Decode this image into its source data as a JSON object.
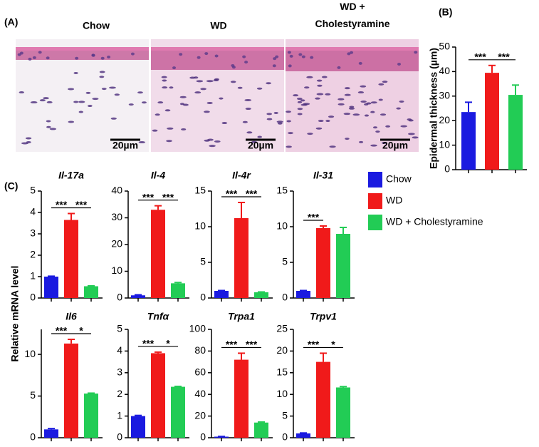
{
  "figure": {
    "panel_labels": [
      "(A)",
      "(B)",
      "(C)"
    ],
    "histology": {
      "labels": [
        "Chow",
        "WD",
        "WD + Cholestyramine"
      ],
      "scale_bar": "20µm"
    },
    "shared_ylabel": "Relative mRNA level",
    "legend": [
      {
        "name": "Chow",
        "color": "#1a1ae0"
      },
      {
        "name": "WD",
        "color": "#f01a1a"
      },
      {
        "name": "WD + Cholestyramine",
        "color": "#22cc55"
      }
    ]
  },
  "chart_data": [
    {
      "type": "bar",
      "ylabel": "Epidermal thickness (µm)",
      "categories": [
        null,
        null,
        null
      ],
      "values": [
        23.5,
        39.5,
        30.5
      ],
      "errors": [
        4,
        3,
        4
      ],
      "colors": [
        "#1a1ae0",
        "#f01a1a",
        "#22cc55"
      ],
      "ylim": [
        0,
        50
      ],
      "yticks": [
        0,
        10,
        20,
        30,
        40,
        50
      ],
      "comparisons": [
        "***",
        "***"
      ]
    },
    {
      "type": "bar",
      "title": "Il-17a",
      "categories": [
        null,
        null,
        null
      ],
      "values": [
        1.0,
        3.65,
        0.55
      ],
      "errors": [
        0.02,
        0.3,
        0.02
      ],
      "colors": [
        "#1a1ae0",
        "#f01a1a",
        "#22cc55"
      ],
      "ylim": [
        0,
        5
      ],
      "yticks": [
        0,
        1,
        2,
        3,
        4,
        5
      ],
      "comparisons": [
        "***",
        "***"
      ]
    },
    {
      "type": "bar",
      "title": "Il-4",
      "categories": [
        null,
        null,
        null
      ],
      "values": [
        1,
        33,
        5.5
      ],
      "errors": [
        0.2,
        1.5,
        0.3
      ],
      "colors": [
        "#1a1ae0",
        "#f01a1a",
        "#22cc55"
      ],
      "ylim": [
        0,
        40
      ],
      "yticks": [
        0,
        10,
        20,
        30,
        40
      ],
      "comparisons": [
        "***",
        "***"
      ]
    },
    {
      "type": "bar",
      "title": "Il-4r",
      "categories": [
        null,
        null,
        null
      ],
      "values": [
        1.0,
        11.2,
        0.8
      ],
      "errors": [
        0.05,
        2.2,
        0.05
      ],
      "colors": [
        "#1a1ae0",
        "#f01a1a",
        "#22cc55"
      ],
      "ylim": [
        0,
        15
      ],
      "yticks": [
        0,
        5,
        10,
        15
      ],
      "comparisons": [
        "***",
        "***"
      ]
    },
    {
      "type": "bar",
      "title": "Il-31",
      "categories": [
        null,
        null,
        null
      ],
      "values": [
        1.0,
        9.8,
        9.0
      ],
      "errors": [
        0.05,
        0.3,
        0.9
      ],
      "colors": [
        "#1a1ae0",
        "#f01a1a",
        "#22cc55"
      ],
      "ylim": [
        0,
        15
      ],
      "yticks": [
        0,
        5,
        10,
        15
      ],
      "comparisons": [
        "***",
        null
      ]
    },
    {
      "type": "bar",
      "title": "Il6",
      "categories": [
        null,
        null,
        null
      ],
      "values": [
        1.0,
        11.3,
        5.3
      ],
      "errors": [
        0.1,
        0.5,
        0.05
      ],
      "colors": [
        "#1a1ae0",
        "#f01a1a",
        "#22cc55"
      ],
      "ylim": [
        0,
        13
      ],
      "yticks": [
        0,
        5,
        10
      ],
      "comparisons": [
        "***",
        "*"
      ]
    },
    {
      "type": "bar",
      "title": "Tnfα",
      "categories": [
        null,
        null,
        null
      ],
      "values": [
        1.0,
        3.9,
        2.35
      ],
      "errors": [
        0.03,
        0.05,
        0.02
      ],
      "colors": [
        "#1a1ae0",
        "#f01a1a",
        "#22cc55"
      ],
      "ylim": [
        0,
        5
      ],
      "yticks": [
        0,
        1,
        2,
        3,
        4,
        5
      ],
      "comparisons": [
        "***",
        "*"
      ]
    },
    {
      "type": "bar",
      "title": "Trpa1",
      "categories": [
        null,
        null,
        null
      ],
      "values": [
        1,
        72,
        14
      ],
      "errors": [
        0.2,
        6,
        0.5
      ],
      "colors": [
        "#1a1ae0",
        "#f01a1a",
        "#22cc55"
      ],
      "ylim": [
        0,
        100
      ],
      "yticks": [
        0,
        20,
        40,
        60,
        80,
        100
      ],
      "comparisons": [
        "***",
        "***"
      ]
    },
    {
      "type": "bar",
      "title": "Trpv1",
      "categories": [
        null,
        null,
        null
      ],
      "values": [
        1,
        17.5,
        11.6
      ],
      "errors": [
        0.1,
        2,
        0.2
      ],
      "colors": [
        "#1a1ae0",
        "#f01a1a",
        "#22cc55"
      ],
      "ylim": [
        0,
        25
      ],
      "yticks": [
        0,
        5,
        10,
        15,
        20,
        25
      ],
      "comparisons": [
        "***",
        "*"
      ]
    }
  ]
}
